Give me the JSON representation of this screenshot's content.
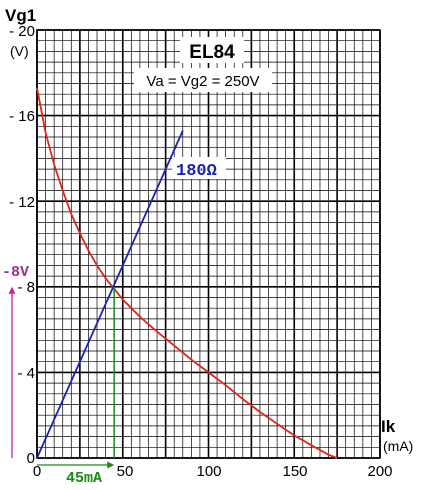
{
  "chart_data": {
    "type": "line",
    "title": "EL84",
    "subtitle": "Va = Vg2 = 250V",
    "ylabel": "Vg1",
    "yunit": "(V)",
    "xlabel": "Ik",
    "xunit": "(mA)",
    "xlim": [
      0,
      200
    ],
    "ylim": [
      0,
      -20
    ],
    "grid": true,
    "x_tick_labels": [
      "0",
      "50",
      "100",
      "150",
      "200"
    ],
    "y_tick_labels": [
      "0",
      "- 4",
      "- 8",
      "- 12",
      "- 16",
      "- 20"
    ],
    "series": [
      {
        "color": "#e0241a",
        "x": [
          0,
          5,
          10,
          15,
          20,
          25,
          30,
          35,
          40,
          45,
          50,
          60,
          70,
          80,
          90,
          100,
          110,
          120,
          130,
          140,
          150,
          160,
          170,
          175
        ],
        "y": [
          -17.3,
          -15.2,
          -13.7,
          -12.5,
          -11.4,
          -10.5,
          -9.7,
          -9.0,
          -8.4,
          -7.9,
          -7.4,
          -6.6,
          -5.9,
          -5.25,
          -4.6,
          -4.0,
          -3.4,
          -2.75,
          -2.15,
          -1.6,
          -1.05,
          -0.6,
          -0.15,
          0
        ]
      },
      {
        "name": "180Ω",
        "color": "#1c22b4",
        "x": [
          0,
          20,
          45,
          60,
          70,
          85
        ],
        "y": [
          0,
          -3.6,
          -8.1,
          -10.8,
          -12.6,
          -15.3
        ]
      }
    ],
    "annotations": {
      "load_line_label": "180Ω",
      "operating_point_vg": "-8V",
      "operating_point_ik": "45mA"
    },
    "operating_point": {
      "x": 45,
      "y": -8
    }
  }
}
